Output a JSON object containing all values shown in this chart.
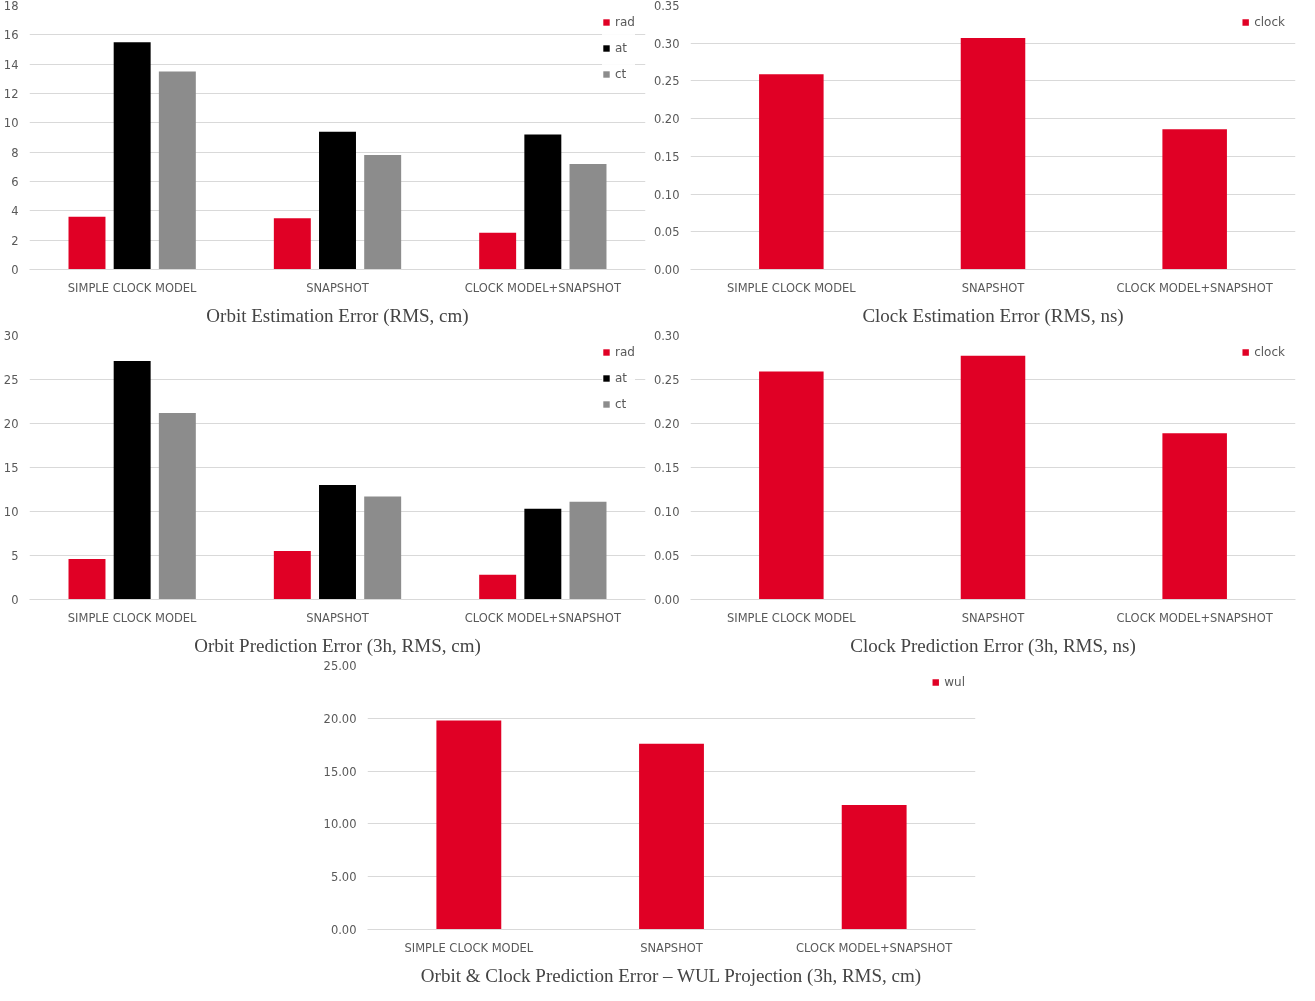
{
  "chart_data": [
    {
      "type": "bar",
      "title": "Orbit Estimation Error (RMS, cm)",
      "categories": [
        "SIMPLE CLOCK MODEL",
        "SNAPSHOT",
        "CLOCK MODEL+SNAPSHOT"
      ],
      "series": [
        {
          "name": "rad",
          "color": "#e00025",
          "values": [
            3.6,
            3.5,
            2.5
          ]
        },
        {
          "name": "at",
          "color": "#000000",
          "values": [
            15.5,
            9.4,
            9.2
          ]
        },
        {
          "name": "ct",
          "color": "#8c8c8c",
          "values": [
            13.5,
            7.8,
            7.2
          ]
        }
      ],
      "ylim": [
        0,
        18
      ],
      "yticks": [
        0,
        2,
        4,
        6,
        8,
        10,
        12,
        14,
        16,
        18
      ],
      "grid": "y",
      "legend": "top right"
    },
    {
      "type": "bar",
      "title": "Clock Estimation Error (RMS, ns)",
      "categories": [
        "SIMPLE CLOCK MODEL",
        "SNAPSHOT",
        "CLOCK MODEL+SNAPSHOT"
      ],
      "series": [
        {
          "name": "clock",
          "color": "#e00025",
          "values": [
            0.259,
            0.307,
            0.186
          ]
        }
      ],
      "ylim": [
        0,
        0.35
      ],
      "yticks": [
        {
          "value": 0,
          "label": "0.00"
        },
        {
          "value": 0.05,
          "label": "0.05"
        },
        {
          "value": 0.1,
          "label": "0.10"
        },
        {
          "value": 0.15,
          "label": "0.15"
        },
        {
          "value": 0.2,
          "label": "0.20"
        },
        {
          "value": 0.25,
          "label": "0.25"
        },
        {
          "value": 0.3,
          "label": "0.30"
        },
        {
          "value": 0.35,
          "label": "0.35"
        }
      ],
      "grid": "y",
      "legend": "top right"
    },
    {
      "type": "bar",
      "title": "Orbit Prediction Error (3h, RMS, cm)",
      "categories": [
        "SIMPLE CLOCK MODEL",
        "SNAPSHOT",
        "CLOCK MODEL+SNAPSHOT"
      ],
      "series": [
        {
          "name": "rad",
          "color": "#e00025",
          "values": [
            4.6,
            5.5,
            2.8
          ]
        },
        {
          "name": "at",
          "color": "#000000",
          "values": [
            27.1,
            13.0,
            10.3
          ]
        },
        {
          "name": "ct",
          "color": "#8c8c8c",
          "values": [
            21.2,
            11.7,
            11.1
          ]
        }
      ],
      "ylim": [
        0,
        30
      ],
      "yticks": [
        0,
        5,
        10,
        15,
        20,
        25,
        30
      ],
      "grid": "y",
      "legend": "top right"
    },
    {
      "type": "bar",
      "title": "Clock Prediction Error (3h, RMS, ns)",
      "categories": [
        "SIMPLE CLOCK MODEL",
        "SNAPSHOT",
        "CLOCK MODEL+SNAPSHOT"
      ],
      "series": [
        {
          "name": "clock",
          "color": "#e00025",
          "values": [
            0.259,
            0.277,
            0.189
          ]
        }
      ],
      "ylim": [
        0,
        0.3
      ],
      "yticks": [
        {
          "value": 0,
          "label": "0.00"
        },
        {
          "value": 0.05,
          "label": "0.05"
        },
        {
          "value": 0.1,
          "label": "0.10"
        },
        {
          "value": 0.15,
          "label": "0.15"
        },
        {
          "value": 0.2,
          "label": "0.20"
        },
        {
          "value": 0.25,
          "label": "0.25"
        },
        {
          "value": 0.3,
          "label": "0.30"
        }
      ],
      "grid": "y",
      "legend": "top right"
    },
    {
      "type": "bar",
      "title": "Orbit & Clock Prediction Error – WUL Projection (3h, RMS, cm)",
      "categories": [
        "SIMPLE CLOCK MODEL",
        "SNAPSHOT",
        "CLOCK MODEL+SNAPSHOT"
      ],
      "series": [
        {
          "name": "wul",
          "color": "#e00025",
          "values": [
            19.8,
            17.6,
            11.8
          ]
        }
      ],
      "ylim": [
        0,
        25
      ],
      "yticks": [
        {
          "value": 0,
          "label": "0.00"
        },
        {
          "value": 5,
          "label": "5.00"
        },
        {
          "value": 10,
          "label": "10.00"
        },
        {
          "value": 15,
          "label": "15.00"
        },
        {
          "value": 20,
          "label": "20.00"
        },
        {
          "value": 25,
          "label": "25.00"
        }
      ],
      "grid": "y",
      "legend": "top right"
    }
  ]
}
